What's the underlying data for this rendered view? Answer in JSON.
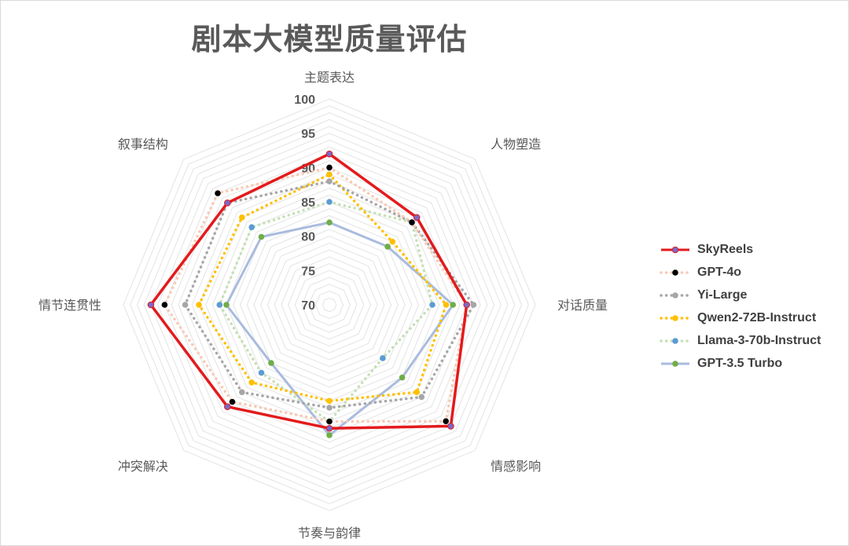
{
  "chart_data": {
    "type": "radar",
    "title": "剧本大模型质量评估",
    "axes": [
      "主题表达",
      "人物塑造",
      "对话质量",
      "情感影响",
      "节奏与韵律",
      "冲突解决",
      "情节连贯性",
      "叙事结构"
    ],
    "rlim": [
      70,
      100
    ],
    "ticks": [
      70,
      75,
      80,
      85,
      90,
      95,
      100
    ],
    "tick_labels": [
      "70",
      "75",
      "80",
      "85",
      "90",
      "95",
      "100"
    ],
    "grid": true,
    "legend_position": "right",
    "series": [
      {
        "name": "SkyReels",
        "color": "#e31a1c",
        "style": "solid",
        "marker": "#7b68c7",
        "values": [
          92,
          88,
          90,
          95,
          88,
          91,
          96,
          91
        ]
      },
      {
        "name": "GPT-4o",
        "color": "#f8c9b4",
        "style": "dotted",
        "marker": "#000000",
        "values": [
          90,
          87,
          90,
          94,
          87,
          90,
          94,
          93
        ]
      },
      {
        "name": "Yi-Large",
        "color": "#a6a6a6",
        "style": "dotted",
        "marker": "#a6a6a6",
        "values": [
          88,
          87,
          91,
          89,
          85,
          88,
          91,
          91
        ]
      },
      {
        "name": "Qwen2-72B-Instruct",
        "color": "#ffc000",
        "style": "dotted",
        "marker": "#ffc000",
        "values": [
          89,
          83,
          87,
          88,
          84,
          86,
          89,
          88
        ]
      },
      {
        "name": "Llama-3-70b-Instruct",
        "color": "#c5e0b4",
        "style": "dotted",
        "marker": "#5b9bd5",
        "values": [
          85,
          87,
          85,
          81,
          87,
          84,
          86,
          86
        ]
      },
      {
        "name": "GPT-3.5 Turbo",
        "color": "#a9bbdf",
        "style": "solid",
        "marker": "#70ad47",
        "values": [
          82,
          82,
          88,
          85,
          89,
          82,
          85,
          84
        ]
      }
    ]
  }
}
